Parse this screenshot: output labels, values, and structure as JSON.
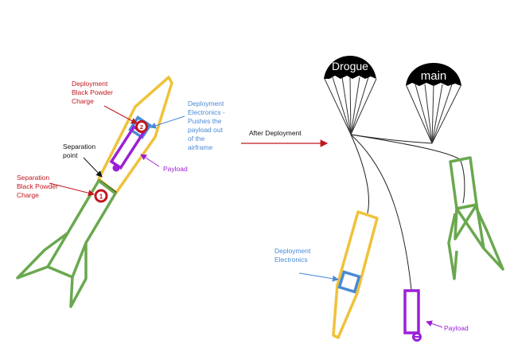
{
  "labels": {
    "deployment_charge": "Deployment\nBlack Powder\nCharge",
    "electronics_desc": "Deployment\nElectronics -\nPushes the\npayload out\nof the\nairframe",
    "payload_left": "Payload",
    "separation_point": "Separation\npoint",
    "separation_charge": "Separation\nBlack Powder\nCharge",
    "after_deployment": "After Deployment",
    "deployment_electronics": "Deployment\nElectronics",
    "payload_right": "Payload",
    "drogue": "Drogue",
    "main": "main",
    "charge_1": "1",
    "charge_2": "2"
  },
  "colors": {
    "upper_body": "#f0c23a",
    "lower_body": "#6aa84f",
    "electronics": "#4a8ad6",
    "payload": "#9b1fd6",
    "charge": "#c0181e",
    "chute": "#000000"
  }
}
